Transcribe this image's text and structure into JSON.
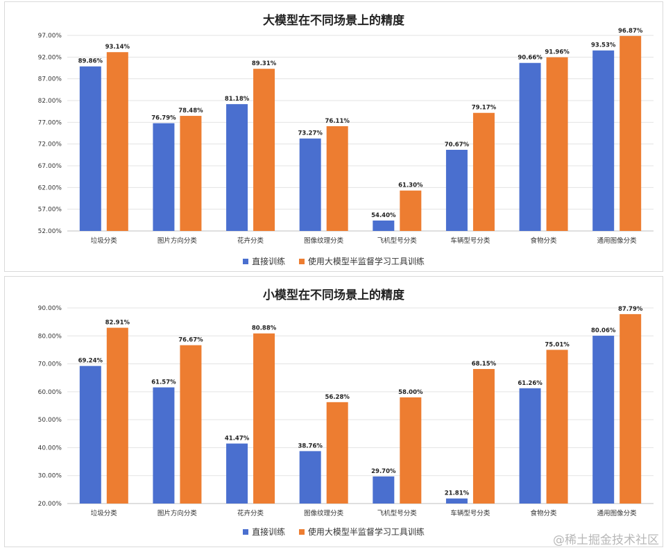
{
  "colors": {
    "series1": "#4a6fcf",
    "series2": "#ed7d31",
    "grid": "#e3e3e3",
    "axis": "#bfbfbf"
  },
  "legend": {
    "series1": "直接训练",
    "series2": "使用大模型半监督学习工具训练"
  },
  "watermark": "@稀土掘金技术社区",
  "chart_data": [
    {
      "type": "bar",
      "title": "大模型在不同场景上的精度",
      "categories": [
        "垃圾分类",
        "图片方向分类",
        "花卉分类",
        "图像纹理分类",
        "飞机型号分类",
        "车辆型号分类",
        "食物分类",
        "通用图像分类"
      ],
      "series": [
        {
          "name": "直接训练",
          "values": [
            89.86,
            76.79,
            81.18,
            73.27,
            54.4,
            70.67,
            90.66,
            93.53
          ],
          "labels": [
            "89.86%",
            "76.79%",
            "81.18%",
            "73.27%",
            "54.40%",
            "70.67%",
            "90.66%",
            "93.53%"
          ]
        },
        {
          "name": "使用大模型半监督学习工具训练",
          "values": [
            93.14,
            78.48,
            89.31,
            76.11,
            61.3,
            79.17,
            91.96,
            96.87
          ],
          "labels": [
            "93.14%",
            "78.48%",
            "89.31%",
            "76.11%",
            "61.30%",
            "79.17%",
            "91.96%",
            "96.87%"
          ]
        }
      ],
      "ylim": [
        52,
        97
      ],
      "yticks": [
        52,
        57,
        62,
        67,
        72,
        77,
        82,
        87,
        92,
        97
      ],
      "ytick_labels": [
        "52.00%",
        "57.00%",
        "62.00%",
        "67.00%",
        "72.00%",
        "77.00%",
        "82.00%",
        "87.00%",
        "92.00%",
        "97.00%"
      ],
      "grid": true,
      "legend_position": "bottom"
    },
    {
      "type": "bar",
      "title": "小模型在不同场景上的精度",
      "categories": [
        "垃圾分类",
        "图片方向分类",
        "花卉分类",
        "图像纹理分类",
        "飞机型号分类",
        "车辆型号分类",
        "食物分类",
        "通用图像分类"
      ],
      "series": [
        {
          "name": "直接训练",
          "values": [
            69.24,
            61.57,
            41.47,
            38.76,
            29.7,
            21.81,
            61.26,
            80.06
          ],
          "labels": [
            "69.24%",
            "61.57%",
            "41.47%",
            "38.76%",
            "29.70%",
            "21.81%",
            "61.26%",
            "80.06%"
          ]
        },
        {
          "name": "使用大模型半监督学习工具训练",
          "values": [
            82.91,
            76.67,
            80.88,
            56.28,
            58.0,
            68.15,
            75.01,
            87.79
          ],
          "labels": [
            "82.91%",
            "76.67%",
            "80.88%",
            "56.28%",
            "58.00%",
            "68.15%",
            "75.01%",
            "87.79%"
          ]
        }
      ],
      "ylim": [
        20,
        90
      ],
      "yticks": [
        20,
        30,
        40,
        50,
        60,
        70,
        80,
        90
      ],
      "ytick_labels": [
        "20.00%",
        "30.00%",
        "40.00%",
        "50.00%",
        "60.00%",
        "70.00%",
        "80.00%",
        "90.00%"
      ],
      "grid": true,
      "legend_position": "bottom"
    }
  ]
}
